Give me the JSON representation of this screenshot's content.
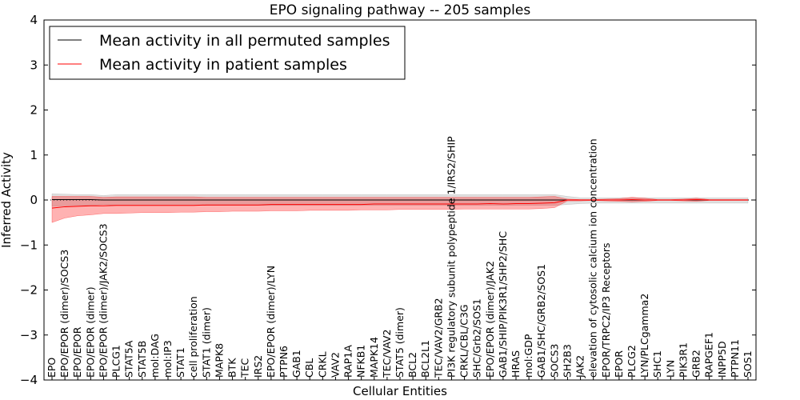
{
  "chart_data": {
    "type": "line",
    "title": "EPO signaling pathway -- 205 samples",
    "xlabel": "Cellular Entities",
    "ylabel": "Inferred Activity",
    "ylim": [
      -4,
      4
    ],
    "yticks": [
      -4,
      -3,
      -2,
      -1,
      0,
      1,
      2,
      3,
      4
    ],
    "ytick_labels": [
      "−4",
      "−3",
      "−2",
      "−1",
      "0",
      "1",
      "2",
      "3",
      "4"
    ],
    "legend": {
      "location": "top-left"
    },
    "categories": [
      "EPO",
      "EPO/EPOR (dimer)/SOCS3",
      "EPO/EPOR",
      "EPO/EPOR (dimer)",
      "EPO/EPOR (dimer)/JAK2/SOCS3",
      "PLCG1",
      "STAT5A",
      "STAT5B",
      "mol:DAG",
      "mol:IP3",
      "STAT1",
      "cell proliferation",
      "STAT1 (dimer)",
      "MAPK8",
      "BTK",
      "TEC",
      "IRS2",
      "EPO/EPOR (dimer)/LYN",
      "PTPN6",
      "GAB1",
      "CBL",
      "CRKL",
      "VAV2",
      "RAP1A",
      "NFKB1",
      "MAPK14",
      "TEC/VAV2",
      "STAT5 (dimer)",
      "BCL2",
      "BCL2L1",
      "TEC/VAV2/GRB2",
      "PI3K regulatory subunit polypeptide 1/IRS2/SHIP",
      "CRKL/CBL/C3G",
      "SHC/Grb2/SOS1",
      "EPO/EPOR (dimer)/JAK2",
      "GAB1/SHIP/PIK3R1/SHP2/SHC",
      "HRAS",
      "mol:GDP",
      "GAB1/SHC/GRB2/SOS1",
      "SOCS3",
      "SH2B3",
      "JAK2",
      "elevation of cytosolic calcium ion concentration",
      "EPOR/TRPC2/IP3 Receptors",
      "EPOR",
      "PLCG2",
      "LYN/PLCgamma2",
      "SHC1",
      "LYN",
      "PIK3R1",
      "GRB2",
      "RAPGEF1",
      "INPP5D",
      "PTPN11",
      "SOS1"
    ],
    "series": [
      {
        "name": "Mean activity in all permuted samples",
        "color": "#000000",
        "style": "dotted",
        "values": [
          0.01,
          0.01,
          0.01,
          0.01,
          0.0,
          0.0,
          0.0,
          0.0,
          0.0,
          0.0,
          0.0,
          0.0,
          0.0,
          0.0,
          0.0,
          0.0,
          0.0,
          0.0,
          0.0,
          0.0,
          0.0,
          0.0,
          0.0,
          0.0,
          0.0,
          0.0,
          0.0,
          0.0,
          0.0,
          0.0,
          0.0,
          0.0,
          0.0,
          0.0,
          0.0,
          0.0,
          0.0,
          0.0,
          0.0,
          0.0,
          0.0,
          0.0,
          0.0,
          0.0,
          0.0,
          0.0,
          0.0,
          0.0,
          0.0,
          0.0,
          0.0,
          0.0,
          0.0,
          0.0,
          0.0
        ],
        "band_upper": [
          0.14,
          0.13,
          0.12,
          0.12,
          0.1,
          0.12,
          0.12,
          0.12,
          0.12,
          0.12,
          0.12,
          0.12,
          0.12,
          0.12,
          0.12,
          0.12,
          0.12,
          0.12,
          0.12,
          0.12,
          0.12,
          0.12,
          0.12,
          0.12,
          0.12,
          0.12,
          0.12,
          0.12,
          0.12,
          0.12,
          0.12,
          0.12,
          0.12,
          0.12,
          0.12,
          0.12,
          0.12,
          0.12,
          0.12,
          0.12,
          0.08,
          0.05,
          0.05,
          0.05,
          0.05,
          0.05,
          0.05,
          0.05,
          0.05,
          0.05,
          0.05,
          0.05,
          0.05,
          0.05,
          0.05
        ],
        "band_lower": [
          -0.14,
          -0.13,
          -0.12,
          -0.12,
          -0.1,
          -0.12,
          -0.12,
          -0.12,
          -0.12,
          -0.12,
          -0.12,
          -0.12,
          -0.12,
          -0.12,
          -0.12,
          -0.12,
          -0.12,
          -0.12,
          -0.12,
          -0.12,
          -0.12,
          -0.12,
          -0.12,
          -0.12,
          -0.12,
          -0.12,
          -0.12,
          -0.12,
          -0.12,
          -0.12,
          -0.12,
          -0.12,
          -0.12,
          -0.12,
          -0.12,
          -0.12,
          -0.12,
          -0.12,
          -0.12,
          -0.12,
          -0.1,
          -0.08,
          -0.07,
          -0.07,
          -0.07,
          -0.07,
          -0.07,
          -0.07,
          -0.07,
          -0.07,
          -0.07,
          -0.07,
          -0.07,
          -0.07,
          -0.07
        ]
      },
      {
        "name": "Mean activity in patient samples",
        "color": "#ff0000",
        "style": "solid",
        "values": [
          -0.18,
          -0.15,
          -0.14,
          -0.13,
          -0.13,
          -0.12,
          -0.12,
          -0.12,
          -0.12,
          -0.12,
          -0.12,
          -0.12,
          -0.11,
          -0.11,
          -0.11,
          -0.11,
          -0.11,
          -0.1,
          -0.1,
          -0.1,
          -0.1,
          -0.1,
          -0.1,
          -0.1,
          -0.1,
          -0.09,
          -0.09,
          -0.09,
          -0.09,
          -0.09,
          -0.09,
          -0.09,
          -0.09,
          -0.09,
          -0.08,
          -0.09,
          -0.08,
          -0.08,
          -0.07,
          -0.06,
          0.0,
          0.0,
          0.0,
          0.0,
          0.0,
          0.01,
          0.0,
          0.0,
          0.0,
          0.0,
          0.01,
          0.0,
          0.0,
          0.0,
          0.0
        ],
        "band_upper": [
          0.08,
          0.08,
          0.08,
          0.08,
          0.06,
          0.07,
          0.07,
          0.07,
          0.07,
          0.07,
          0.07,
          0.07,
          0.06,
          0.06,
          0.06,
          0.06,
          0.06,
          0.06,
          0.06,
          0.06,
          0.06,
          0.06,
          0.06,
          0.06,
          0.06,
          0.06,
          0.06,
          0.06,
          0.06,
          0.06,
          0.06,
          0.06,
          0.06,
          0.06,
          0.06,
          0.06,
          0.06,
          0.06,
          0.07,
          0.08,
          0.02,
          0.01,
          0.01,
          0.02,
          0.03,
          0.06,
          0.04,
          0.01,
          0.01,
          0.02,
          0.04,
          0.01,
          0.01,
          0.01,
          0.01
        ],
        "band_lower": [
          -0.5,
          -0.4,
          -0.35,
          -0.33,
          -0.3,
          -0.3,
          -0.29,
          -0.28,
          -0.28,
          -0.28,
          -0.27,
          -0.27,
          -0.26,
          -0.26,
          -0.25,
          -0.25,
          -0.25,
          -0.24,
          -0.24,
          -0.24,
          -0.23,
          -0.23,
          -0.23,
          -0.23,
          -0.22,
          -0.22,
          -0.22,
          -0.21,
          -0.21,
          -0.21,
          -0.21,
          -0.21,
          -0.2,
          -0.2,
          -0.2,
          -0.2,
          -0.2,
          -0.2,
          -0.19,
          -0.17,
          -0.02,
          -0.02,
          -0.01,
          -0.02,
          -0.03,
          -0.04,
          -0.03,
          -0.01,
          -0.01,
          -0.02,
          -0.03,
          -0.01,
          -0.01,
          -0.01,
          -0.01
        ]
      }
    ]
  }
}
